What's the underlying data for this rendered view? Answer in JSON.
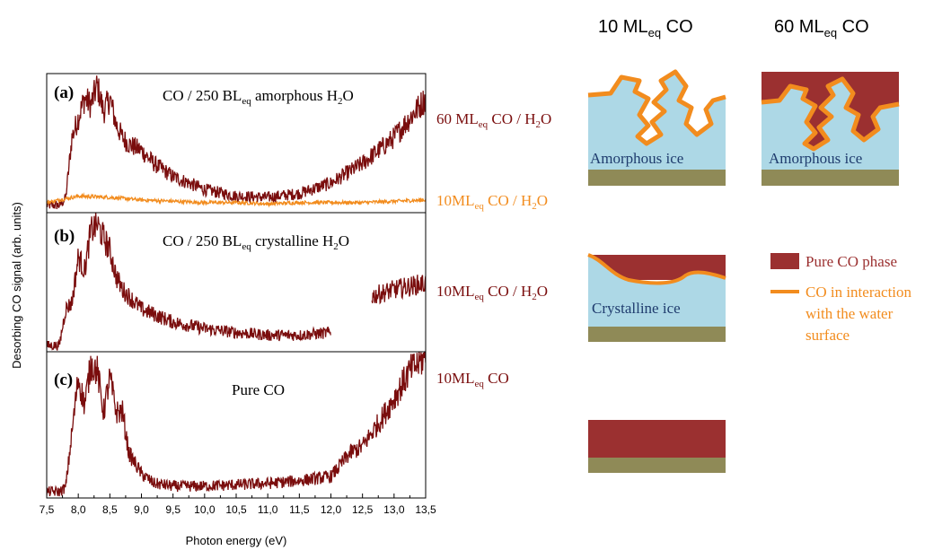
{
  "figure": {
    "ylabel": "Desorbing CO signal (arb. units)",
    "xlabel": "Photon energy (eV)",
    "xticks": [
      "7,5",
      "8,0",
      "8,5",
      "9,0",
      "9,5",
      "10,0",
      "10,5",
      "11,0",
      "11,5",
      "12,0",
      "12,5",
      "13,0",
      "13,5"
    ],
    "colors": {
      "dark_red": "#7a0d0d",
      "orange": "#f28c1e",
      "ice": "#add8e6",
      "substrate": "#8f8a57",
      "pure_co": "#9b3030"
    }
  },
  "panels": [
    {
      "id": "a",
      "letter": "(a)",
      "title_pre": "CO / 250 BL",
      "title_sub": "eq",
      "title_mid": " amorphous H",
      "title_sub2": "2",
      "title_post": "O"
    },
    {
      "id": "b",
      "letter": "(b)",
      "title_pre": "CO / 250 BL",
      "title_sub": "eq",
      "title_mid": " crystalline H",
      "title_sub2": "2",
      "title_post": "O"
    },
    {
      "id": "c",
      "letter": "(c)",
      "title_pre": "Pure CO",
      "title_sub": "",
      "title_mid": "",
      "title_sub2": "",
      "title_post": ""
    }
  ],
  "series_labels": [
    {
      "pre": "60 ML",
      "sub": "eq",
      "mid": " CO / H",
      "sub2": "2",
      "post": "O",
      "color": "#7a0d0d"
    },
    {
      "pre": "10ML",
      "sub": "eq",
      "mid": " CO / H",
      "sub2": "2",
      "post": "O",
      "color": "#f28c1e"
    },
    {
      "pre": "10ML",
      "sub": "eq",
      "mid": " CO / H",
      "sub2": "2",
      "post": "O",
      "color": "#7a0d0d"
    },
    {
      "pre": "10ML",
      "sub": "eq",
      "mid": " CO",
      "sub2": "",
      "post": "",
      "color": "#7a0d0d"
    }
  ],
  "schematic": {
    "col1_pre": "10 ML",
    "col1_sub": "eq",
    "col1_post": " CO",
    "col2_pre": "60 ML",
    "col2_sub": "eq",
    "col2_post": " CO",
    "amorphous_label_1": "Amorphous ice",
    "amorphous_label_2": "Amorphous ice",
    "crystalline_label": "Crystalline ice"
  },
  "legend": {
    "pure_co": "Pure CO phase",
    "interaction_1": "CO in interaction",
    "interaction_2": "with the water",
    "interaction_3": "surface"
  },
  "chart_data": [
    {
      "type": "line",
      "panel": "a",
      "xlim": [
        7.5,
        13.5
      ],
      "series": [
        {
          "color": "#7a0d0d",
          "x": [
            7.5,
            7.7,
            7.8,
            7.9,
            8.0,
            8.1,
            8.2,
            8.3,
            8.4,
            8.5,
            8.6,
            8.7,
            8.8,
            9.0,
            9.2,
            9.5,
            10.0,
            10.5,
            11.0,
            11.5,
            12.0,
            12.5,
            13.0,
            13.25,
            13.5
          ],
          "y": [
            0.03,
            0.03,
            0.08,
            0.55,
            0.7,
            0.85,
            0.8,
            0.95,
            0.75,
            0.85,
            0.65,
            0.55,
            0.5,
            0.45,
            0.35,
            0.25,
            0.15,
            0.1,
            0.09,
            0.12,
            0.2,
            0.35,
            0.55,
            0.7,
            0.85
          ]
        },
        {
          "color": "#f28c1e",
          "x": [
            7.5,
            8.0,
            8.5,
            9.0,
            9.5,
            10.0,
            10.5,
            11.0,
            11.5,
            12.0,
            12.5,
            13.0,
            13.5
          ],
          "y": [
            0.05,
            0.1,
            0.09,
            0.07,
            0.06,
            0.05,
            0.05,
            0.04,
            0.05,
            0.05,
            0.05,
            0.06,
            0.07
          ]
        }
      ]
    },
    {
      "type": "line",
      "panel": "b",
      "xlim": [
        7.5,
        13.5
      ],
      "series": [
        {
          "color": "#7a0d0d",
          "x": [
            7.5,
            7.7,
            7.8,
            7.9,
            8.0,
            8.1,
            8.2,
            8.3,
            8.4,
            8.5,
            8.6,
            8.7,
            8.8,
            9.0,
            9.5,
            10.0,
            10.5,
            11.0,
            11.5,
            12.0,
            null,
            12.65,
            13.0,
            13.5
          ],
          "y": [
            0.02,
            0.02,
            0.3,
            0.35,
            0.7,
            0.6,
            0.9,
            0.95,
            0.85,
            0.75,
            0.55,
            0.45,
            0.4,
            0.3,
            0.2,
            0.15,
            0.12,
            0.1,
            0.1,
            0.12,
            null,
            0.4,
            0.45,
            0.5
          ]
        }
      ]
    },
    {
      "type": "line",
      "panel": "c",
      "xlim": [
        7.5,
        13.5
      ],
      "series": [
        {
          "color": "#7a0d0d",
          "x": [
            7.5,
            7.7,
            7.8,
            7.9,
            8.0,
            8.1,
            8.2,
            8.3,
            8.4,
            8.5,
            8.6,
            8.7,
            8.8,
            9.0,
            9.2,
            9.5,
            10.0,
            10.5,
            11.0,
            11.5,
            12.0,
            12.3,
            12.5,
            12.8,
            13.0,
            13.25,
            13.5
          ],
          "y": [
            0.02,
            0.02,
            0.05,
            0.45,
            0.85,
            0.65,
            0.95,
            0.9,
            0.6,
            0.85,
            0.6,
            0.6,
            0.3,
            0.15,
            0.08,
            0.06,
            0.06,
            0.07,
            0.08,
            0.1,
            0.13,
            0.3,
            0.35,
            0.55,
            0.7,
            0.9,
            1.0
          ]
        }
      ]
    }
  ]
}
